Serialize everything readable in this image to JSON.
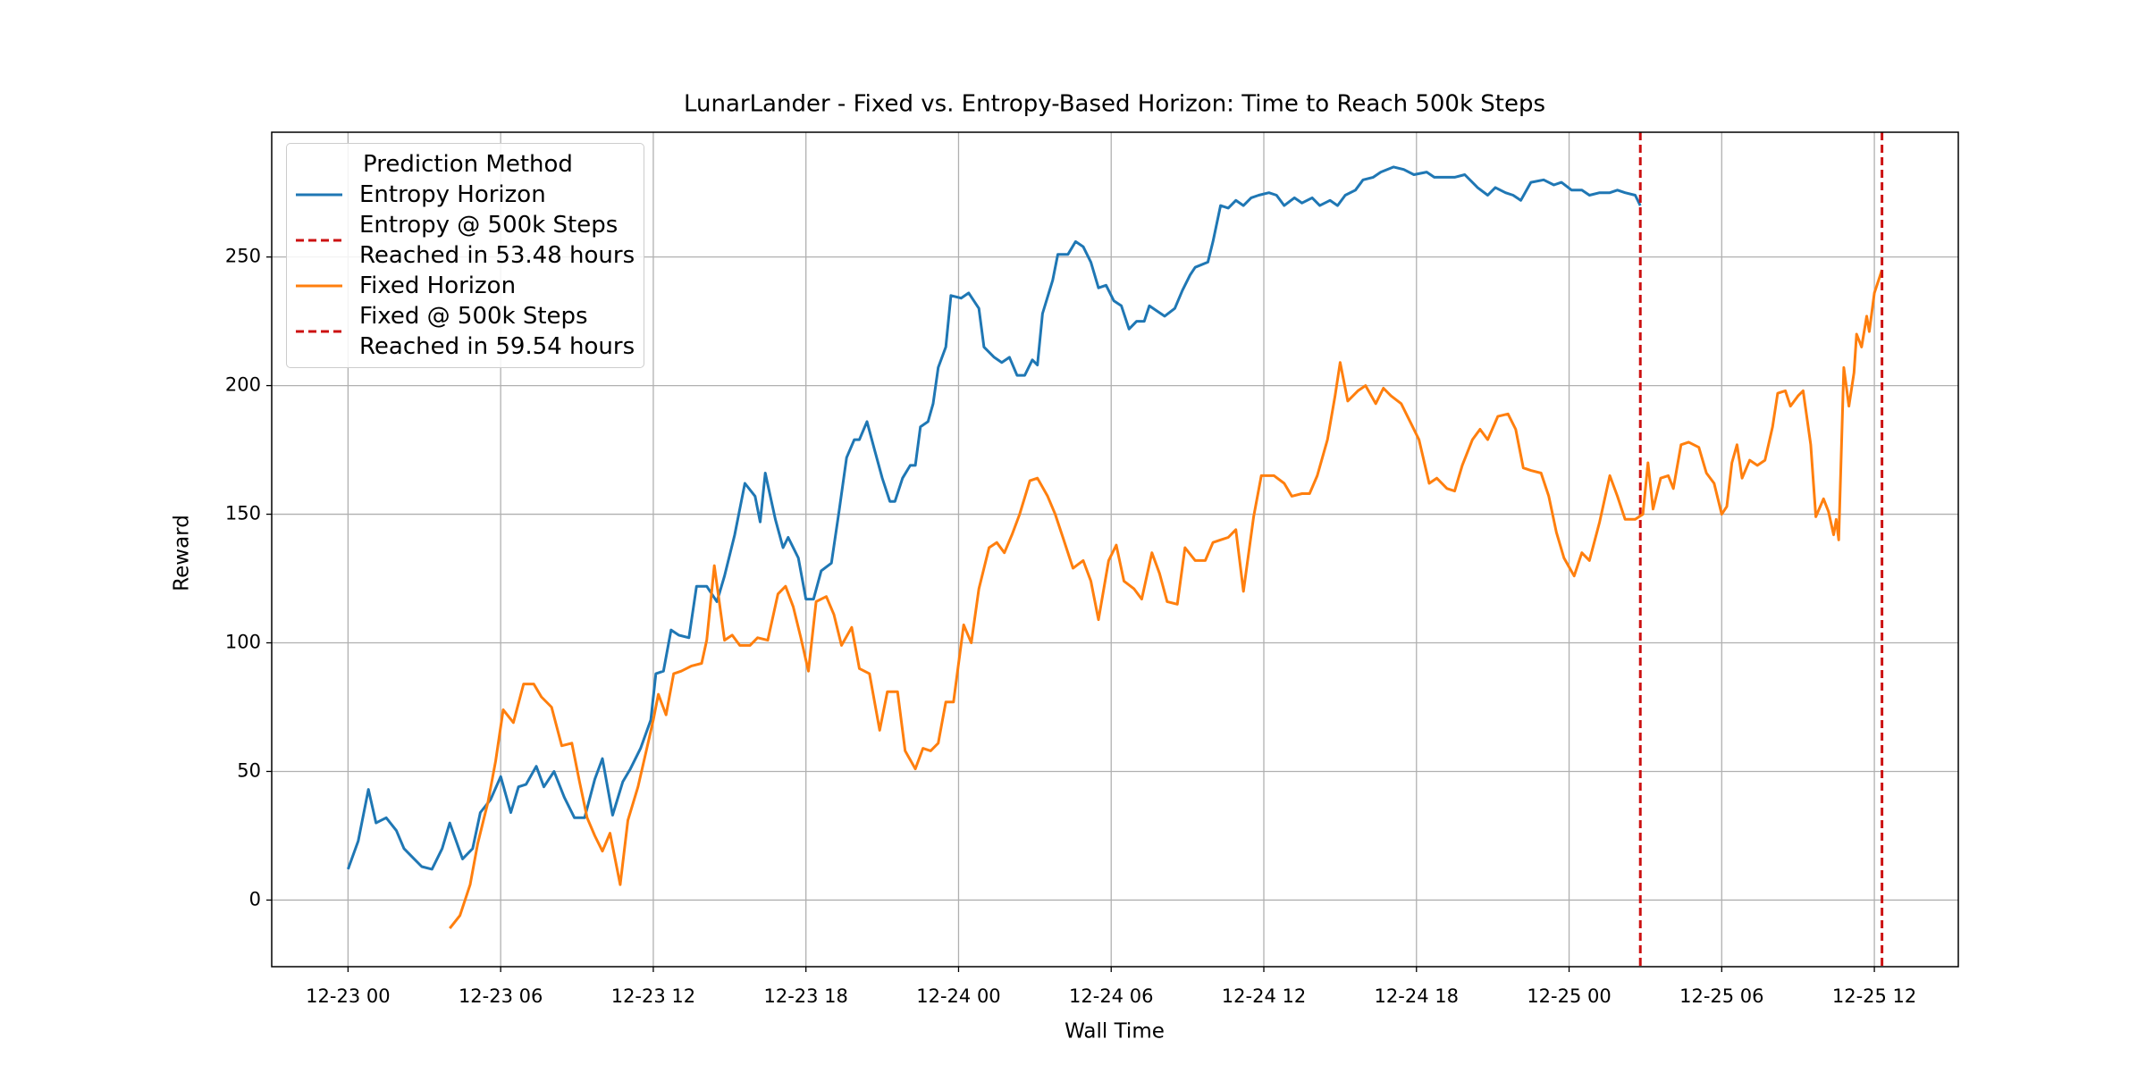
{
  "chart_data": {
    "type": "line",
    "title": "LunarLander - Fixed vs. Entropy-Based Horizon: Time to Reach 500k Steps",
    "x_label": "Wall Time",
    "y_label": "Reward",
    "legend_title": "Prediction Method",
    "legend_position": "upper left",
    "grid": true,
    "xlim": [
      -3,
      63.3
    ],
    "ylim": [
      -25.9,
      298.5
    ],
    "xticks": [
      {
        "value": 0,
        "label": "12-23 00"
      },
      {
        "value": 6,
        "label": "12-23 06"
      },
      {
        "value": 12,
        "label": "12-23 12"
      },
      {
        "value": 18,
        "label": "12-23 18"
      },
      {
        "value": 24,
        "label": "12-24 00"
      },
      {
        "value": 30,
        "label": "12-24 06"
      },
      {
        "value": 36,
        "label": "12-24 12"
      },
      {
        "value": 42,
        "label": "12-24 18"
      },
      {
        "value": 48,
        "label": "12-25 00"
      },
      {
        "value": 54,
        "label": "12-25 06"
      },
      {
        "value": 60,
        "label": "12-25 12"
      }
    ],
    "yticks": [
      0,
      50,
      100,
      150,
      200,
      250
    ],
    "series": [
      {
        "name": "Entropy Horizon",
        "color": "#1f77b4",
        "x": [
          0,
          0.4,
          0.8,
          1.1,
          1.5,
          1.9,
          2.2,
          2.6,
          2.9,
          3.3,
          3.7,
          4.0,
          4.5,
          4.9,
          5.2,
          5.6,
          6.0,
          6.4,
          6.7,
          7.0,
          7.4,
          7.7,
          8.1,
          8.5,
          8.9,
          9.3,
          9.7,
          10.0,
          10.4,
          10.8,
          11.1,
          11.5,
          11.9,
          12.1,
          12.4,
          12.7,
          13.0,
          13.4,
          13.7,
          14.1,
          14.5,
          14.8,
          15.2,
          15.6,
          16.0,
          16.2,
          16.4,
          16.8,
          17.1,
          17.3,
          17.7,
          18.0,
          18.3,
          18.6,
          19.0,
          19.3,
          19.6,
          19.9,
          20.1,
          20.4,
          20.7,
          21.0,
          21.3,
          21.5,
          21.8,
          22.1,
          22.3,
          22.5,
          22.8,
          23.0,
          23.2,
          23.5,
          23.7,
          24.1,
          24.4,
          24.8,
          25.0,
          25.4,
          25.7,
          26.0,
          26.3,
          26.6,
          26.9,
          27.1,
          27.3,
          27.7,
          27.9,
          28.3,
          28.6,
          28.9,
          29.2,
          29.5,
          29.8,
          30.1,
          30.4,
          30.7,
          31.0,
          31.3,
          31.5,
          31.8,
          32.1,
          32.5,
          32.8,
          33.1,
          33.3,
          33.8,
          34.0,
          34.3,
          34.6,
          34.9,
          35.2,
          35.5,
          35.8,
          36.2,
          36.5,
          36.8,
          37.2,
          37.5,
          37.9,
          38.2,
          38.6,
          38.9,
          39.2,
          39.6,
          39.9,
          40.3,
          40.6,
          41.1,
          41.5,
          41.9,
          42.4,
          42.7,
          43.0,
          43.5,
          43.9,
          44.4,
          44.8,
          45.1,
          45.5,
          45.8,
          46.1,
          46.5,
          47.0,
          47.4,
          47.7,
          48.1,
          48.5,
          48.8,
          49.2,
          49.6,
          49.9,
          50.2,
          50.6,
          50.8
        ],
        "values": [
          12,
          23,
          43,
          30,
          32,
          27,
          20,
          16,
          13,
          12,
          20,
          30,
          16,
          20,
          34,
          39,
          48,
          34,
          44,
          45,
          52,
          44,
          50,
          40,
          32,
          32,
          47,
          55,
          33,
          46,
          51,
          59,
          70,
          88,
          89,
          105,
          103,
          102,
          122,
          122,
          116,
          126,
          142,
          162,
          157,
          147,
          166,
          148,
          137,
          141,
          133,
          117,
          117,
          128,
          131,
          151,
          172,
          179,
          179,
          186,
          175,
          164,
          155,
          155,
          164,
          169,
          169,
          184,
          186,
          193,
          207,
          215,
          235,
          234,
          236,
          230,
          215,
          211,
          209,
          211,
          204,
          204,
          210,
          208,
          228,
          241,
          251,
          251,
          256,
          254,
          248,
          238,
          239,
          233,
          231,
          222,
          225,
          225,
          231,
          229,
          227,
          230,
          237,
          243,
          246,
          248,
          256,
          270,
          269,
          272,
          270,
          273,
          274,
          275,
          274,
          270,
          273,
          271,
          273,
          270,
          272,
          270,
          274,
          276,
          280,
          281,
          283,
          285,
          284,
          282,
          283,
          281,
          281,
          281,
          282,
          277,
          274,
          277,
          275,
          274,
          272,
          279,
          280,
          278,
          279,
          276,
          276,
          274,
          275,
          275,
          276,
          275,
          274,
          270
        ]
      },
      {
        "name": "Entropy @ 500k Steps\nReached in 53.48 hours",
        "kind": "vline",
        "color": "#cc1111",
        "x": 50.8
      },
      {
        "name": "Fixed Horizon",
        "color": "#ff7f0e",
        "x": [
          4.0,
          4.4,
          4.8,
          5.1,
          5.5,
          5.8,
          6.1,
          6.5,
          6.9,
          7.3,
          7.6,
          8.0,
          8.4,
          8.8,
          9.1,
          9.4,
          9.7,
          10.0,
          10.3,
          10.7,
          11.0,
          11.4,
          11.7,
          12.0,
          12.2,
          12.5,
          12.8,
          13.1,
          13.5,
          13.9,
          14.1,
          14.4,
          14.8,
          15.1,
          15.4,
          15.8,
          16.1,
          16.5,
          16.9,
          17.2,
          17.5,
          17.8,
          18.1,
          18.4,
          18.8,
          19.1,
          19.4,
          19.8,
          20.1,
          20.5,
          20.9,
          21.2,
          21.6,
          21.9,
          22.3,
          22.6,
          22.9,
          23.2,
          23.5,
          23.8,
          24.2,
          24.5,
          24.8,
          25.2,
          25.5,
          25.8,
          26.1,
          26.4,
          26.8,
          27.1,
          27.5,
          27.8,
          28.1,
          28.5,
          28.9,
          29.2,
          29.5,
          29.9,
          30.2,
          30.5,
          30.9,
          31.2,
          31.6,
          31.9,
          32.2,
          32.6,
          32.9,
          33.3,
          33.7,
          34.0,
          34.3,
          34.6,
          34.9,
          35.2,
          35.6,
          35.9,
          36.4,
          36.8,
          37.1,
          37.5,
          37.8,
          38.1,
          38.5,
          38.8,
          39.0,
          39.3,
          39.7,
          40.0,
          40.4,
          40.7,
          41.0,
          41.4,
          41.8,
          42.1,
          42.5,
          42.8,
          43.2,
          43.5,
          43.8,
          44.2,
          44.5,
          44.8,
          45.2,
          45.6,
          45.9,
          46.2,
          46.5,
          46.9,
          47.2,
          47.5,
          47.8,
          48.2,
          48.5,
          48.8,
          49.2,
          49.6,
          49.9,
          50.2,
          50.6,
          50.9,
          51.1,
          51.3,
          51.6,
          51.9,
          52.1,
          52.4,
          52.7,
          53.1,
          53.4,
          53.7,
          54.0,
          54.2,
          54.4,
          54.6,
          54.8,
          55.1,
          55.4,
          55.7,
          56.0,
          56.2,
          56.5,
          56.7,
          57.0,
          57.2,
          57.5,
          57.7,
          58.0,
          58.2,
          58.4,
          58.5,
          58.6,
          58.8,
          59.0,
          59.2,
          59.3,
          59.5,
          59.7,
          59.8,
          60.0,
          60.2,
          60.3
        ],
        "values": [
          -11,
          -6,
          6,
          22,
          38,
          54,
          74,
          69,
          84,
          84,
          79,
          75,
          60,
          61,
          46,
          32,
          25,
          19,
          26,
          6,
          31,
          44,
          57,
          70,
          80,
          72,
          88,
          89,
          91,
          92,
          101,
          130,
          101,
          103,
          99,
          99,
          102,
          101,
          119,
          122,
          114,
          102,
          89,
          116,
          118,
          111,
          99,
          106,
          90,
          88,
          66,
          81,
          81,
          58,
          51,
          59,
          58,
          61,
          77,
          77,
          107,
          100,
          121,
          137,
          139,
          135,
          142,
          150,
          163,
          164,
          157,
          150,
          141,
          129,
          132,
          124,
          109,
          132,
          138,
          124,
          121,
          117,
          135,
          127,
          116,
          115,
          137,
          132,
          132,
          139,
          140,
          141,
          144,
          120,
          149,
          165,
          165,
          162,
          157,
          158,
          158,
          165,
          179,
          196,
          209,
          194,
          198,
          200,
          193,
          199,
          196,
          193,
          185,
          179,
          162,
          164,
          160,
          159,
          169,
          179,
          183,
          179,
          188,
          189,
          183,
          168,
          167,
          166,
          157,
          143,
          133,
          126,
          135,
          132,
          147,
          165,
          157,
          148,
          148,
          150,
          170,
          152,
          164,
          165,
          160,
          177,
          178,
          176,
          166,
          162,
          150,
          153,
          170,
          177,
          164,
          171,
          169,
          171,
          184,
          197,
          198,
          192,
          196,
          198,
          177,
          149,
          156,
          151,
          142,
          148,
          140,
          207,
          192,
          205,
          220,
          215,
          227,
          221,
          236,
          242,
          245
        ]
      },
      {
        "name": "Fixed @ 500k Steps\nReached in 59.54 hours",
        "kind": "vline",
        "color": "#cc1111",
        "x": 60.3
      }
    ]
  }
}
